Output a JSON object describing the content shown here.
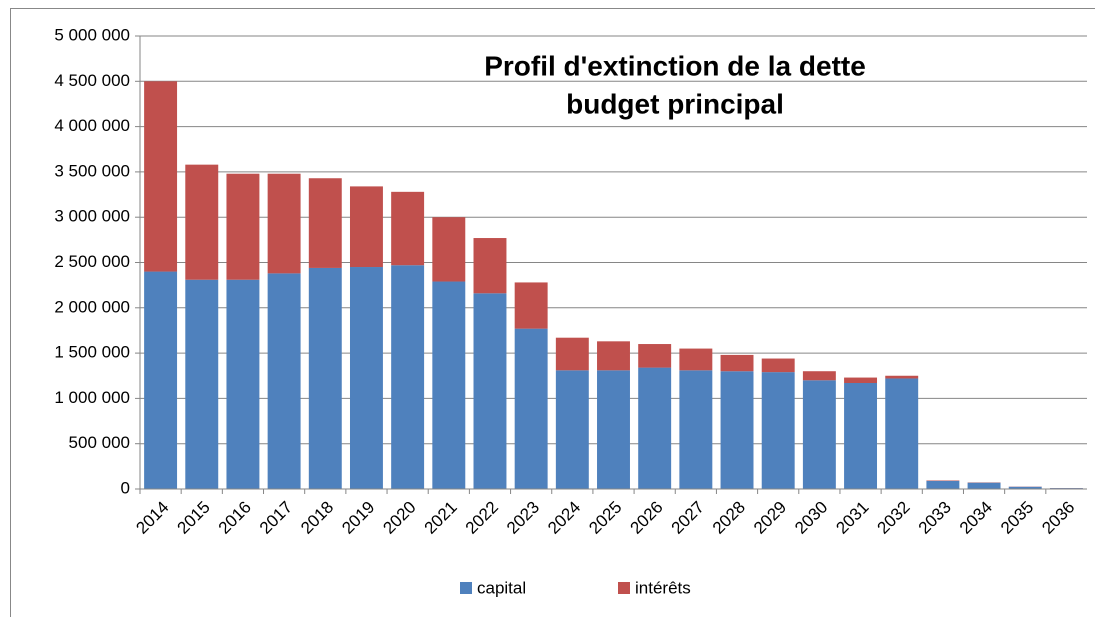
{
  "chart_data": {
    "type": "stacked_bar",
    "title": [
      "Profil d'extinction de la dette",
      "budget principal"
    ],
    "categories": [
      "2014",
      "2015",
      "2016",
      "2017",
      "2018",
      "2019",
      "2020",
      "2021",
      "2022",
      "2023",
      "2024",
      "2025",
      "2026",
      "2027",
      "2028",
      "2029",
      "2030",
      "2031",
      "2032",
      "2033",
      "2034",
      "2035",
      "2036"
    ],
    "series": [
      {
        "name": "capital",
        "color": "#4f81bd",
        "values": [
          2400000,
          2310000,
          2310000,
          2380000,
          2440000,
          2450000,
          2470000,
          2290000,
          2160000,
          1770000,
          1310000,
          1310000,
          1340000,
          1310000,
          1300000,
          1290000,
          1200000,
          1170000,
          1220000,
          90000,
          70000,
          25000,
          10000
        ]
      },
      {
        "name": "intérêts",
        "color": "#c0504d",
        "values": [
          2100000,
          1270000,
          1170000,
          1100000,
          990000,
          890000,
          810000,
          710000,
          610000,
          510000,
          360000,
          320000,
          260000,
          240000,
          180000,
          150000,
          100000,
          60000,
          30000,
          5000,
          3000,
          2000,
          1000
        ]
      }
    ],
    "ylim": [
      0,
      5000000
    ],
    "yticks": [
      0,
      {
        "value": 500000,
        "label": "500 000"
      },
      {
        "value": 1000000,
        "label": "1 000 000"
      },
      {
        "value": 1500000,
        "label": "1 500 000"
      },
      {
        "value": 2000000,
        "label": "2 000 000"
      },
      {
        "value": 2500000,
        "label": "2 500 000"
      },
      {
        "value": 3000000,
        "label": "3 000 000"
      },
      {
        "value": 3500000,
        "label": "3 500 000"
      },
      {
        "value": 4000000,
        "label": "4 000 000"
      },
      {
        "value": 4500000,
        "label": "4 500 000"
      },
      {
        "value": 5000000,
        "label": "5 000 000"
      }
    ],
    "grid": true,
    "legend": "bottom"
  }
}
